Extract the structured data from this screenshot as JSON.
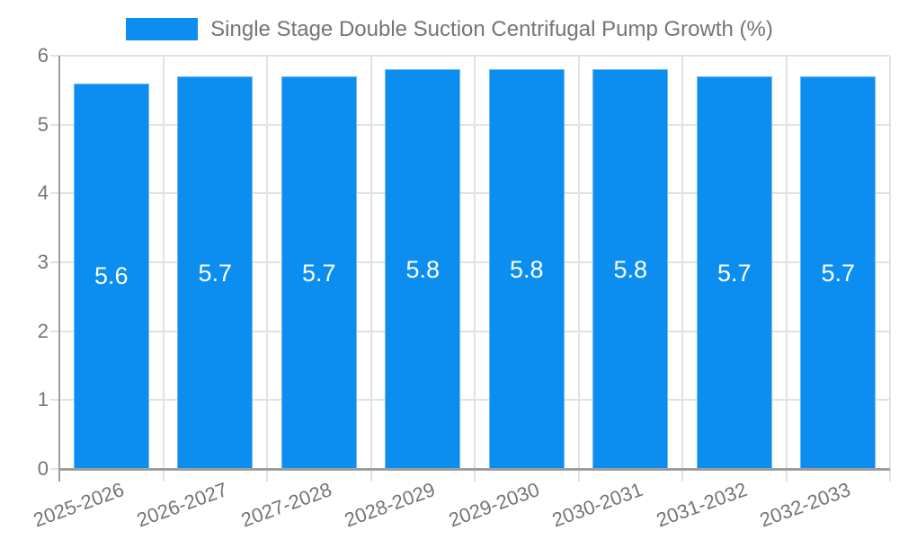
{
  "chart_data": {
    "type": "bar",
    "title": "",
    "legend": "Single Stage Double Suction Centrifugal Pump Growth (%)",
    "legend_position": "top-center",
    "categories": [
      "2025-2026",
      "2026-2027",
      "2027-2028",
      "2028-2029",
      "2029-2030",
      "2030-2031",
      "2031-2032",
      "2032-2033"
    ],
    "values": [
      5.6,
      5.7,
      5.7,
      5.8,
      5.8,
      5.8,
      5.7,
      5.7
    ],
    "bar_value_labels": [
      "5.6",
      "5.7",
      "5.7",
      "5.8",
      "5.8",
      "5.8",
      "5.7",
      "5.7"
    ],
    "xlabel": "",
    "ylabel": "",
    "ylim": [
      0,
      6
    ],
    "yticks": [
      "0",
      "1",
      "2",
      "3",
      "4",
      "5",
      "6"
    ],
    "grid": true,
    "x_tick_rotation_deg": -20,
    "colors": {
      "bar": "#0c8ef0",
      "bar_edge": "#6db9f5",
      "bar_label_text": "#ffffff",
      "axis_text": "#757575",
      "grid_line": "#e2e2e2",
      "axis_line": "#9e9e9e"
    }
  }
}
